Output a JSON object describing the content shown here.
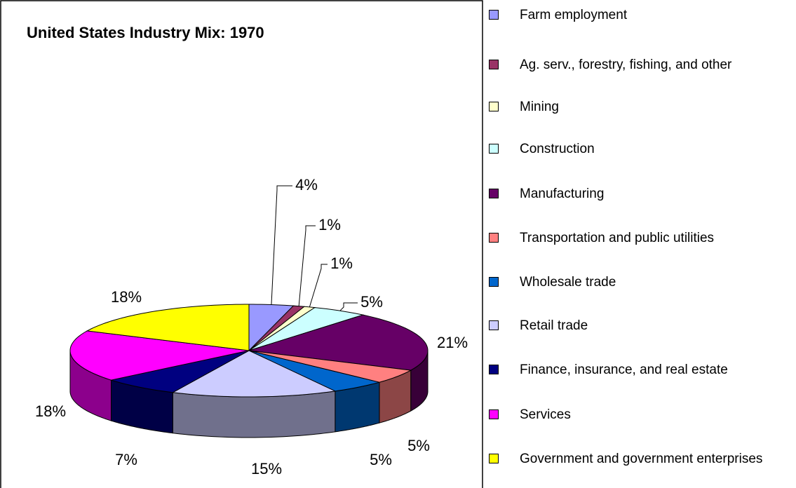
{
  "chart_data": {
    "type": "pie3d",
    "title": "United States Industry Mix: 1970",
    "categories": [
      "Farm employment",
      "Ag. serv., forestry, fishing, and other",
      "Mining",
      "Construction",
      "Manufacturing",
      "Transportation and public utilities",
      "Wholesale trade",
      "Retail trade",
      "Finance, insurance, and real estate",
      "Services",
      "Government and government enterprises"
    ],
    "values": [
      4,
      1,
      1,
      5,
      21,
      5,
      5,
      15,
      7,
      18,
      18
    ],
    "value_labels": [
      "4%",
      "1%",
      "1%",
      "5%",
      "21%",
      "5%",
      "5%",
      "15%",
      "7%",
      "18%",
      "18%"
    ],
    "colors": [
      "#9999ff",
      "#993366",
      "#ffffcc",
      "#ccffff",
      "#660066",
      "#ff8080",
      "#0066cc",
      "#ccccff",
      "#000080",
      "#ff00ff",
      "#ffff00"
    ],
    "legend": "right"
  }
}
